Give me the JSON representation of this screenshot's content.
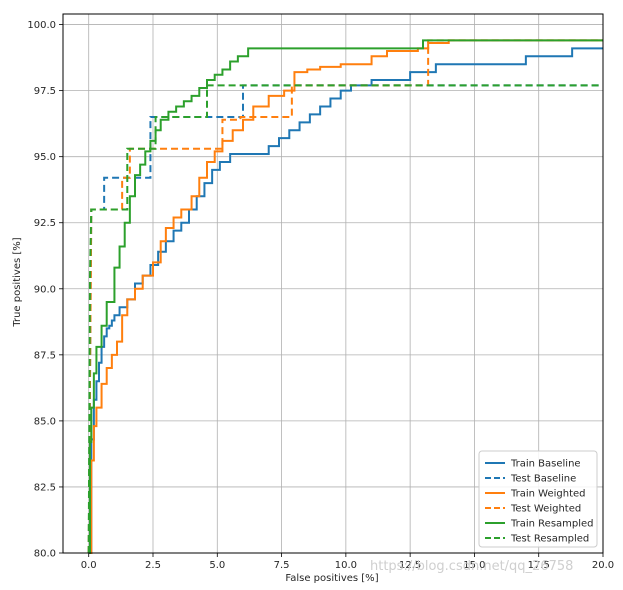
{
  "chart_data": {
    "type": "line",
    "xlabel": "False positives [%]",
    "ylabel": "True positives [%]",
    "xlim": [
      -1,
      20
    ],
    "ylim": [
      80,
      100.4
    ],
    "xticks": [
      "0.0",
      "2.5",
      "5.0",
      "7.5",
      "10.0",
      "12.5",
      "15.0",
      "17.5",
      "20.0"
    ],
    "yticks": [
      "80.0",
      "82.5",
      "85.0",
      "87.5",
      "90.0",
      "92.5",
      "95.0",
      "97.5",
      "100.0"
    ],
    "grid": true,
    "legend_position": "lower-right",
    "watermark": "https://blog.csdn.net/qq_26758",
    "colors": {
      "baseline": "#1f77b4",
      "weighted": "#ff7f0e",
      "resampled": "#2ca02c"
    },
    "series": [
      {
        "name": "Train Baseline",
        "color": "#1f77b4",
        "dash": "solid",
        "x": [
          0.0,
          0.1,
          0.2,
          0.3,
          0.4,
          0.5,
          0.6,
          0.7,
          0.8,
          0.9,
          1.0,
          1.2,
          1.5,
          1.8,
          2.1,
          2.4,
          2.7,
          3.0,
          3.3,
          3.6,
          3.9,
          4.2,
          4.5,
          4.8,
          5.1,
          5.5,
          7.0,
          7.4,
          7.8,
          8.2,
          8.6,
          9.0,
          9.4,
          9.8,
          10.2,
          11.0,
          12.5,
          13.5,
          15.0,
          17.0,
          18.8,
          20.0
        ],
        "y": [
          80.0,
          84.3,
          85.8,
          86.5,
          87.2,
          87.8,
          88.2,
          88.5,
          88.6,
          88.8,
          89.0,
          89.3,
          89.6,
          90.2,
          90.5,
          90.9,
          91.4,
          91.8,
          92.2,
          92.5,
          93.0,
          93.5,
          94.0,
          94.5,
          94.8,
          95.1,
          95.4,
          95.7,
          96.0,
          96.3,
          96.6,
          96.9,
          97.2,
          97.5,
          97.7,
          97.9,
          98.2,
          98.5,
          98.5,
          98.8,
          99.1,
          99.1
        ]
      },
      {
        "name": "Test Baseline",
        "color": "#1f77b4",
        "dash": "dashed",
        "x": [
          0.0,
          0.1,
          0.6,
          0.6,
          2.4,
          2.4,
          6.0,
          6.0,
          20.0
        ],
        "y": [
          80.0,
          93.0,
          93.0,
          94.2,
          94.2,
          96.5,
          96.5,
          97.7,
          97.7
        ],
        "step": true
      },
      {
        "name": "Train Weighted",
        "color": "#ff7f0e",
        "dash": "solid",
        "x": [
          0.0,
          0.1,
          0.2,
          0.3,
          0.5,
          0.7,
          0.9,
          1.1,
          1.3,
          1.5,
          1.8,
          2.1,
          2.5,
          2.8,
          3.0,
          3.3,
          3.6,
          4.0,
          4.3,
          4.6,
          4.9,
          5.2,
          5.6,
          6.0,
          6.4,
          7.0,
          7.6,
          8.0,
          8.5,
          9.0,
          9.8,
          11.0,
          11.6,
          12.8,
          13.2,
          14.0,
          17.0,
          20.0
        ],
        "y": [
          80.0,
          83.5,
          84.8,
          85.5,
          86.4,
          87.0,
          87.5,
          88.0,
          89.0,
          89.6,
          90.0,
          90.5,
          91.0,
          91.8,
          92.3,
          92.7,
          93.0,
          93.5,
          94.2,
          94.8,
          95.2,
          95.6,
          96.0,
          96.4,
          96.9,
          97.3,
          97.5,
          98.2,
          98.3,
          98.4,
          98.5,
          98.8,
          99.0,
          99.1,
          99.3,
          99.4,
          99.4,
          99.4
        ]
      },
      {
        "name": "Test Weighted",
        "color": "#ff7f0e",
        "dash": "dashed",
        "x": [
          0.0,
          0.1,
          1.3,
          1.3,
          1.6,
          1.6,
          5.2,
          5.2,
          5.9,
          5.9,
          7.9,
          7.9,
          13.2,
          13.2,
          20.0
        ],
        "y": [
          80.0,
          93.0,
          93.0,
          94.2,
          94.2,
          95.3,
          95.3,
          96.4,
          96.4,
          96.5,
          96.5,
          97.7,
          97.7,
          99.4,
          99.4
        ],
        "step": true
      },
      {
        "name": "Train Resampled",
        "color": "#2ca02c",
        "dash": "solid",
        "x": [
          0.0,
          0.05,
          0.1,
          0.2,
          0.3,
          0.5,
          0.7,
          1.0,
          1.2,
          1.4,
          1.6,
          1.8,
          2.0,
          2.2,
          2.4,
          2.6,
          2.8,
          3.1,
          3.4,
          3.7,
          4.0,
          4.3,
          4.6,
          4.9,
          5.2,
          5.5,
          5.8,
          6.2,
          8.0,
          12.8,
          13.0,
          20.0
        ],
        "y": [
          80.0,
          84.2,
          85.5,
          86.8,
          87.8,
          88.6,
          89.5,
          90.8,
          91.6,
          92.5,
          93.5,
          94.3,
          94.7,
          95.2,
          95.6,
          96.0,
          96.4,
          96.7,
          96.9,
          97.1,
          97.3,
          97.6,
          97.9,
          98.1,
          98.3,
          98.6,
          98.8,
          99.1,
          99.1,
          99.1,
          99.4,
          99.4
        ]
      },
      {
        "name": "Test Resampled",
        "color": "#2ca02c",
        "dash": "dashed",
        "x": [
          0.0,
          0.05,
          0.1,
          1.5,
          1.5,
          2.6,
          2.6,
          4.6,
          4.6,
          12.8,
          12.8,
          20.0
        ],
        "y": [
          80.0,
          90.5,
          93.0,
          93.0,
          95.3,
          95.3,
          96.5,
          96.5,
          97.7,
          97.7,
          97.7,
          97.7
        ],
        "step": true
      }
    ]
  }
}
